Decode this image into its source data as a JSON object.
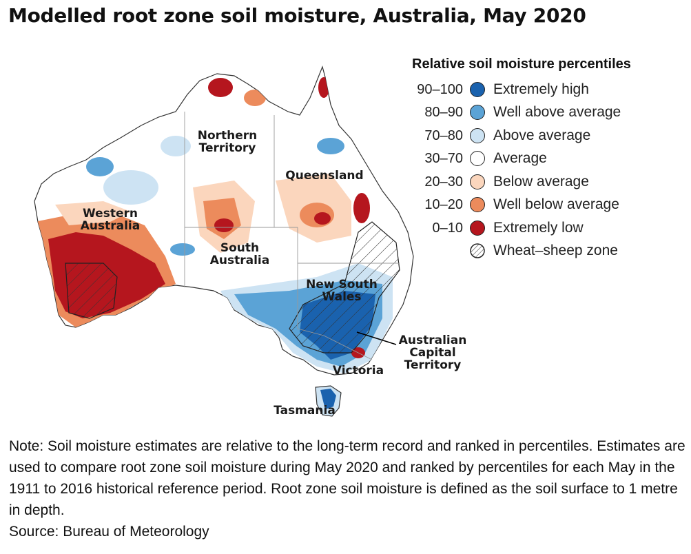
{
  "title": "Modelled root zone soil moisture, Australia, May 2020",
  "legend": {
    "title": "Relative soil moisture percentiles",
    "items": [
      {
        "range": "90–100",
        "label": "Extremely high",
        "color": "#1a62ae",
        "icon": "filled-circle"
      },
      {
        "range": "80–90",
        "label": "Well above average",
        "color": "#5ba3d6",
        "icon": "filled-circle"
      },
      {
        "range": "70–80",
        "label": "Above average",
        "color": "#cde3f3",
        "icon": "filled-circle"
      },
      {
        "range": "30–70",
        "label": "Average",
        "color": "#ffffff",
        "icon": "filled-circle"
      },
      {
        "range": "20–30",
        "label": "Below average",
        "color": "#fbd6bd",
        "icon": "filled-circle"
      },
      {
        "range": "10–20",
        "label": "Well below average",
        "color": "#ec8b5c",
        "icon": "filled-circle"
      },
      {
        "range": "0–10",
        "label": "Extremely low",
        "color": "#b5161e",
        "icon": "filled-circle"
      },
      {
        "range": "",
        "label": "Wheat–sheep zone",
        "icon": "hatched-circle"
      }
    ]
  },
  "map": {
    "labels": {
      "northern_territory": "Northern\nTerritory",
      "queensland": "Queensland",
      "western_australia": "Western Australia",
      "south_australia": "South\nAustralia",
      "new_south_wales": "New South\nWales",
      "act": "Australian\nCapital\nTerritory",
      "victoria": "Victoria",
      "tasmania": "Tasmania"
    }
  },
  "note": {
    "text": "Note: Soil moisture estimates are relative to the long-term record and ranked in percentiles. Estimates are used to compare root zone soil moisture during May 2020 and ranked by percentiles for each May in the 1911 to 2016 historical reference period. Root zone soil moisture is defined as the soil surface to 1 metre in depth.",
    "source": "Source: Bureau of Meteorology"
  }
}
